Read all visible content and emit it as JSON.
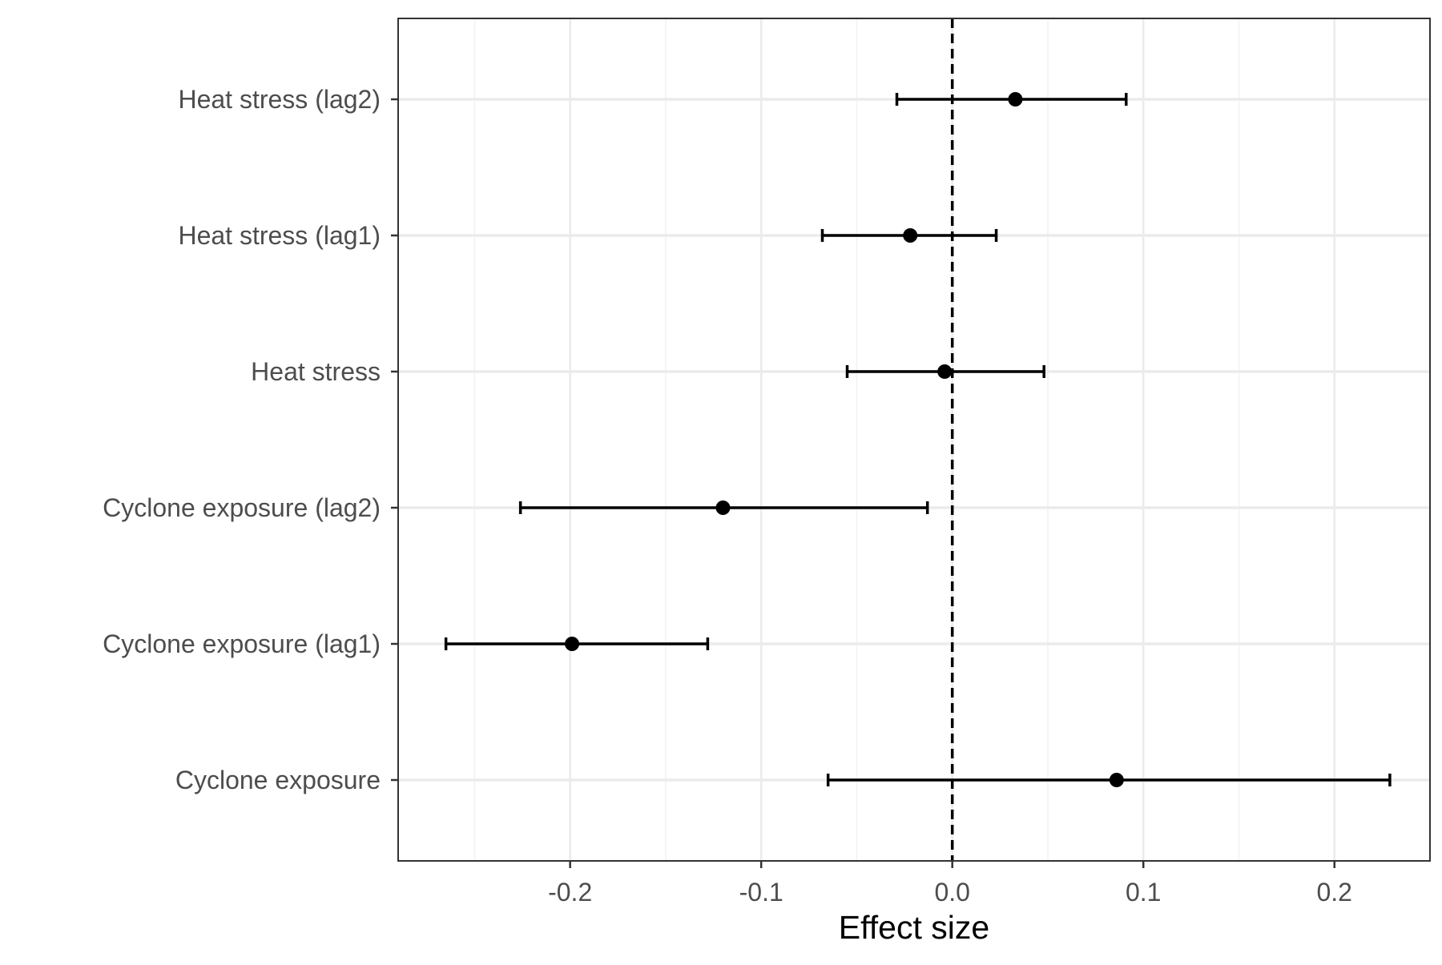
{
  "chart_data": {
    "type": "scatter",
    "subtype": "forest-plot",
    "title": "",
    "xlabel": "Effect size",
    "ylabel": "",
    "xlim": [
      -0.29,
      0.25
    ],
    "x_ticks": [
      -0.2,
      -0.1,
      0.0,
      0.1,
      0.2
    ],
    "x_tick_labels": [
      "-0.2",
      "-0.1",
      "0.0",
      "0.1",
      "0.2"
    ],
    "reference_line": {
      "x": 0.0,
      "style": "dashed"
    },
    "grid": true,
    "legend": "none",
    "categories": [
      "Heat stress (lag2)",
      "Heat stress (lag1)",
      "Heat stress",
      "Cyclone exposure (lag2)",
      "Cyclone exposure (lag1)",
      "Cyclone exposure"
    ],
    "estimates": [
      0.033,
      -0.022,
      -0.004,
      -0.12,
      -0.199,
      0.086
    ],
    "lower": [
      -0.029,
      -0.068,
      -0.055,
      -0.226,
      -0.265,
      -0.065
    ],
    "upper": [
      0.091,
      0.023,
      0.048,
      -0.013,
      -0.128,
      0.229
    ],
    "colors": {
      "points": "#000000",
      "panel_border": "#333333",
      "grid_major": "#ebebeb",
      "grid_minor": "#f2f2f2",
      "tick_labels": "#4d4d4d"
    }
  }
}
